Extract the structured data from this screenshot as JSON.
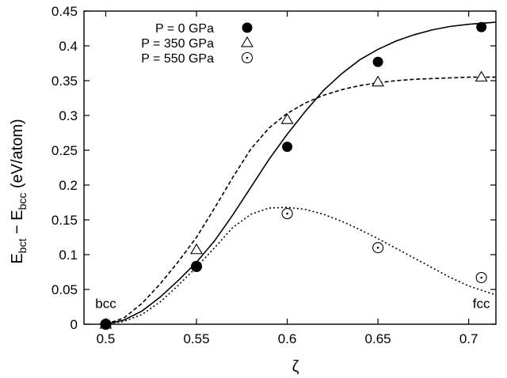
{
  "chart_data": {
    "type": "scatter",
    "xlabel": "ζ",
    "ylabel_main": "E",
    "ylabel_sub1": "bct",
    "ylabel_mid": " − E",
    "ylabel_sub2": "bcc",
    "ylabel_unit": " (eV/atom)",
    "xlim": [
      0.488,
      0.715
    ],
    "ylim": [
      0,
      0.45
    ],
    "xticks": [
      {
        "v": 0.5,
        "label": "0.5"
      },
      {
        "v": 0.55,
        "label": "0.55"
      },
      {
        "v": 0.6,
        "label": "0.6"
      },
      {
        "v": 0.65,
        "label": "0.65"
      },
      {
        "v": 0.7,
        "label": "0.7"
      }
    ],
    "yticks": [
      {
        "v": 0,
        "label": "0"
      },
      {
        "v": 0.05,
        "label": "0.05"
      },
      {
        "v": 0.1,
        "label": "0.1"
      },
      {
        "v": 0.15,
        "label": "0.15"
      },
      {
        "v": 0.2,
        "label": "0.2"
      },
      {
        "v": 0.25,
        "label": "0.25"
      },
      {
        "v": 0.3,
        "label": "0.3"
      },
      {
        "v": 0.35,
        "label": "0.35"
      },
      {
        "v": 0.4,
        "label": "0.4"
      },
      {
        "v": 0.45,
        "label": "0.45"
      }
    ],
    "grid": false,
    "legend_position": "top-left",
    "annotations": [
      {
        "text": "bcc",
        "x": 0.5,
        "y": 0.03
      },
      {
        "text": "fcc",
        "x": 0.707,
        "y": 0.03
      }
    ],
    "series": [
      {
        "name": "P = 0 GPa",
        "marker": "filled-circle",
        "line": "solid",
        "points": [
          [
            0.5,
            0.0
          ],
          [
            0.55,
            0.083
          ],
          [
            0.6,
            0.255
          ],
          [
            0.65,
            0.377
          ],
          [
            0.707,
            0.427
          ]
        ],
        "curve": [
          [
            0.5,
            0.0
          ],
          [
            0.51,
            0.006
          ],
          [
            0.52,
            0.019
          ],
          [
            0.53,
            0.039
          ],
          [
            0.54,
            0.063
          ],
          [
            0.55,
            0.089
          ],
          [
            0.56,
            0.12
          ],
          [
            0.57,
            0.157
          ],
          [
            0.58,
            0.197
          ],
          [
            0.59,
            0.237
          ],
          [
            0.6,
            0.273
          ],
          [
            0.61,
            0.306
          ],
          [
            0.62,
            0.336
          ],
          [
            0.63,
            0.36
          ],
          [
            0.64,
            0.38
          ],
          [
            0.65,
            0.395
          ],
          [
            0.66,
            0.407
          ],
          [
            0.67,
            0.416
          ],
          [
            0.68,
            0.423
          ],
          [
            0.69,
            0.428
          ],
          [
            0.7,
            0.431
          ],
          [
            0.715,
            0.434
          ]
        ]
      },
      {
        "name": "P = 350 GPa",
        "marker": "open-triangle",
        "line": "dashed",
        "points": [
          [
            0.5,
            0.0
          ],
          [
            0.55,
            0.107
          ],
          [
            0.6,
            0.294
          ],
          [
            0.65,
            0.348
          ],
          [
            0.707,
            0.355
          ]
        ],
        "curve": [
          [
            0.5,
            0.0
          ],
          [
            0.51,
            0.009
          ],
          [
            0.52,
            0.03
          ],
          [
            0.53,
            0.058
          ],
          [
            0.54,
            0.09
          ],
          [
            0.55,
            0.125
          ],
          [
            0.56,
            0.167
          ],
          [
            0.57,
            0.211
          ],
          [
            0.58,
            0.252
          ],
          [
            0.59,
            0.282
          ],
          [
            0.6,
            0.303
          ],
          [
            0.61,
            0.318
          ],
          [
            0.62,
            0.329
          ],
          [
            0.63,
            0.337
          ],
          [
            0.64,
            0.343
          ],
          [
            0.65,
            0.347
          ],
          [
            0.66,
            0.35
          ],
          [
            0.67,
            0.352
          ],
          [
            0.68,
            0.353
          ],
          [
            0.69,
            0.354
          ],
          [
            0.7,
            0.355
          ],
          [
            0.715,
            0.355
          ]
        ]
      },
      {
        "name": "P = 550 GPa",
        "marker": "open-circle-dot",
        "line": "dotted",
        "points": [
          [
            0.5,
            0.0
          ],
          [
            0.55,
            0.083
          ],
          [
            0.6,
            0.159
          ],
          [
            0.65,
            0.11
          ],
          [
            0.707,
            0.067
          ]
        ],
        "curve": [
          [
            0.5,
            0.0
          ],
          [
            0.51,
            0.004
          ],
          [
            0.52,
            0.014
          ],
          [
            0.53,
            0.032
          ],
          [
            0.54,
            0.056
          ],
          [
            0.55,
            0.082
          ],
          [
            0.56,
            0.11
          ],
          [
            0.57,
            0.139
          ],
          [
            0.58,
            0.158
          ],
          [
            0.59,
            0.167
          ],
          [
            0.6,
            0.168
          ],
          [
            0.61,
            0.165
          ],
          [
            0.62,
            0.158
          ],
          [
            0.63,
            0.148
          ],
          [
            0.64,
            0.136
          ],
          [
            0.65,
            0.123
          ],
          [
            0.66,
            0.109
          ],
          [
            0.67,
            0.095
          ],
          [
            0.68,
            0.081
          ],
          [
            0.69,
            0.067
          ],
          [
            0.7,
            0.055
          ],
          [
            0.715,
            0.042
          ]
        ]
      }
    ]
  }
}
